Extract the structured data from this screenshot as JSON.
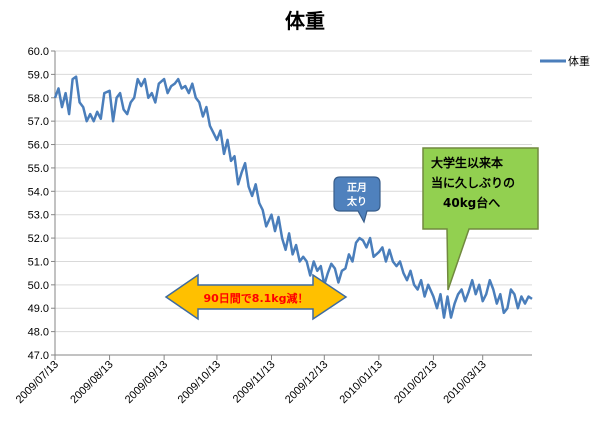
{
  "chart_data": {
    "type": "line",
    "title": "体重",
    "xlabel": "",
    "ylabel": "",
    "ylim": [
      47.0,
      60.0
    ],
    "ytick_step": 1.0,
    "y_ticks": [
      "47.0",
      "48.0",
      "49.0",
      "50.0",
      "51.0",
      "52.0",
      "53.0",
      "54.0",
      "55.0",
      "56.0",
      "57.0",
      "58.0",
      "59.0",
      "60.0"
    ],
    "x_start": "2009/07/13",
    "x_end": "2010/04/10",
    "x_ticks": [
      "2009/07/13",
      "2009/08/13",
      "2009/09/13",
      "2009/10/13",
      "2009/11/13",
      "2009/12/13",
      "2010/01/13",
      "2010/02/13",
      "2010/03/13"
    ],
    "grid": true,
    "legend": "right",
    "series": [
      {
        "name": "体重",
        "color": "#4a7ebb",
        "x": [
          "2009/07/13",
          "2009/07/15",
          "2009/07/17",
          "2009/07/19",
          "2009/07/21",
          "2009/07/23",
          "2009/07/25",
          "2009/07/27",
          "2009/07/29",
          "2009/07/31",
          "2009/08/02",
          "2009/08/04",
          "2009/08/06",
          "2009/08/08",
          "2009/08/10",
          "2009/08/13",
          "2009/08/15",
          "2009/08/17",
          "2009/08/19",
          "2009/08/21",
          "2009/08/23",
          "2009/08/25",
          "2009/08/27",
          "2009/08/29",
          "2009/08/31",
          "2009/09/02",
          "2009/09/04",
          "2009/09/06",
          "2009/09/08",
          "2009/09/10",
          "2009/09/13",
          "2009/09/15",
          "2009/09/17",
          "2009/09/19",
          "2009/09/21",
          "2009/09/23",
          "2009/09/25",
          "2009/09/27",
          "2009/09/29",
          "2009/10/01",
          "2009/10/03",
          "2009/10/05",
          "2009/10/07",
          "2009/10/09",
          "2009/10/11",
          "2009/10/13",
          "2009/10/15",
          "2009/10/17",
          "2009/10/19",
          "2009/10/21",
          "2009/10/23",
          "2009/10/25",
          "2009/10/27",
          "2009/10/29",
          "2009/10/31",
          "2009/11/02",
          "2009/11/04",
          "2009/11/06",
          "2009/11/08",
          "2009/11/10",
          "2009/11/13",
          "2009/11/15",
          "2009/11/17",
          "2009/11/19",
          "2009/11/21",
          "2009/11/23",
          "2009/11/25",
          "2009/11/27",
          "2009/11/29",
          "2009/12/01",
          "2009/12/03",
          "2009/12/05",
          "2009/12/07",
          "2009/12/09",
          "2009/12/11",
          "2009/12/13",
          "2009/12/15",
          "2009/12/17",
          "2009/12/19",
          "2009/12/21",
          "2009/12/23",
          "2009/12/25",
          "2009/12/27",
          "2009/12/29",
          "2009/12/31",
          "2010/01/02",
          "2010/01/04",
          "2010/01/06",
          "2010/01/08",
          "2010/01/10",
          "2010/01/13",
          "2010/01/15",
          "2010/01/17",
          "2010/01/19",
          "2010/01/21",
          "2010/01/23",
          "2010/01/25",
          "2010/01/27",
          "2010/01/29",
          "2010/01/31",
          "2010/02/02",
          "2010/02/04",
          "2010/02/06",
          "2010/02/08",
          "2010/02/10",
          "2010/02/13",
          "2010/02/15",
          "2010/02/17",
          "2010/02/19",
          "2010/02/21",
          "2010/02/23",
          "2010/02/25",
          "2010/02/27",
          "2010/03/01",
          "2010/03/03",
          "2010/03/05",
          "2010/03/07",
          "2010/03/09",
          "2010/03/11",
          "2010/03/13",
          "2010/03/15",
          "2010/03/17",
          "2010/03/19",
          "2010/03/21",
          "2010/03/23",
          "2010/03/25",
          "2010/03/27",
          "2010/03/29",
          "2010/03/31",
          "2010/04/02",
          "2010/04/04",
          "2010/04/06",
          "2010/04/08",
          "2010/04/10"
        ],
        "values": [
          58.0,
          58.4,
          57.6,
          58.2,
          57.3,
          58.8,
          58.9,
          57.8,
          57.6,
          57.0,
          57.3,
          57.0,
          57.4,
          57.1,
          58.2,
          58.3,
          57.0,
          58.0,
          58.2,
          57.5,
          57.3,
          57.8,
          58.0,
          58.8,
          58.5,
          58.8,
          58.0,
          58.2,
          57.8,
          58.6,
          58.8,
          58.2,
          58.5,
          58.6,
          58.8,
          58.4,
          58.5,
          58.2,
          58.6,
          58.0,
          57.8,
          57.2,
          57.6,
          56.8,
          56.5,
          56.2,
          56.6,
          55.6,
          56.2,
          55.3,
          55.5,
          54.3,
          54.8,
          55.2,
          54.2,
          53.8,
          54.3,
          53.5,
          53.2,
          52.5,
          53.0,
          52.3,
          52.9,
          52.0,
          51.5,
          52.2,
          51.3,
          51.7,
          51.0,
          51.2,
          51.0,
          50.4,
          51.0,
          50.6,
          50.8,
          50.0,
          50.5,
          50.9,
          50.7,
          50.1,
          50.6,
          50.7,
          51.3,
          51.0,
          51.8,
          52.0,
          51.9,
          51.6,
          52.0,
          51.2,
          51.4,
          51.6,
          51.0,
          51.5,
          51.0,
          50.8,
          51.0,
          50.5,
          50.2,
          50.6,
          50.0,
          49.8,
          50.2,
          49.5,
          50.0,
          49.5,
          49.0,
          49.6,
          48.6,
          49.5,
          48.6,
          49.2,
          49.6,
          49.8,
          49.3,
          49.7,
          50.2,
          49.6,
          50.0,
          49.3,
          49.6,
          50.2,
          49.8,
          49.2,
          49.6,
          48.8,
          49.0,
          49.8,
          49.6,
          49.0,
          49.5,
          49.2,
          49.5,
          49.4
        ]
      }
    ],
    "annotations": [
      {
        "id": "diet",
        "text": "90日間で8.1kg減！",
        "color": "#ff0000",
        "fill": "#ffc000"
      },
      {
        "id": "newyear",
        "text_lines": [
          "正月",
          "太り"
        ],
        "color": "#ffffff",
        "fill": "#4f81bd"
      },
      {
        "id": "forties",
        "text_lines": [
          "大学生以来本",
          "当に久しぶりの",
          "40kg台へ"
        ],
        "color": "#000000",
        "fill": "#92d050"
      }
    ]
  }
}
